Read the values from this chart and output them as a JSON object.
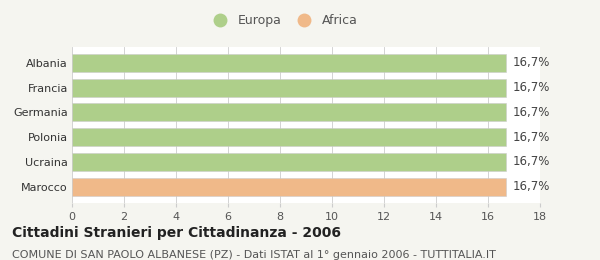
{
  "categories": [
    "Albania",
    "Francia",
    "Germania",
    "Polonia",
    "Ucraina",
    "Marocco"
  ],
  "values": [
    16.7,
    16.7,
    16.7,
    16.7,
    16.7,
    16.7
  ],
  "bar_colors": [
    "#aecf8a",
    "#aecf8a",
    "#aecf8a",
    "#aecf8a",
    "#aecf8a",
    "#f0b989"
  ],
  "bar_labels": [
    "16,7%",
    "16,7%",
    "16,7%",
    "16,7%",
    "16,7%",
    "16,7%"
  ],
  "xlim": [
    0,
    18
  ],
  "xticks": [
    0,
    2,
    4,
    6,
    8,
    10,
    12,
    14,
    16,
    18
  ],
  "legend_labels": [
    "Europa",
    "Africa"
  ],
  "legend_colors": [
    "#aecf8a",
    "#f0b989"
  ],
  "title": "Cittadini Stranieri per Cittadinanza - 2006",
  "subtitle": "COMUNE DI SAN PAOLO ALBANESE (PZ) - Dati ISTAT al 1° gennaio 2006 - TUTTITALIA.IT",
  "title_fontsize": 10,
  "subtitle_fontsize": 8,
  "label_fontsize": 8.5,
  "tick_fontsize": 8,
  "legend_fontsize": 9,
  "background_color": "#f5f5f0",
  "bar_background": "#ffffff",
  "grid_color": "#cccccc",
  "edge_color": "#cccccc"
}
